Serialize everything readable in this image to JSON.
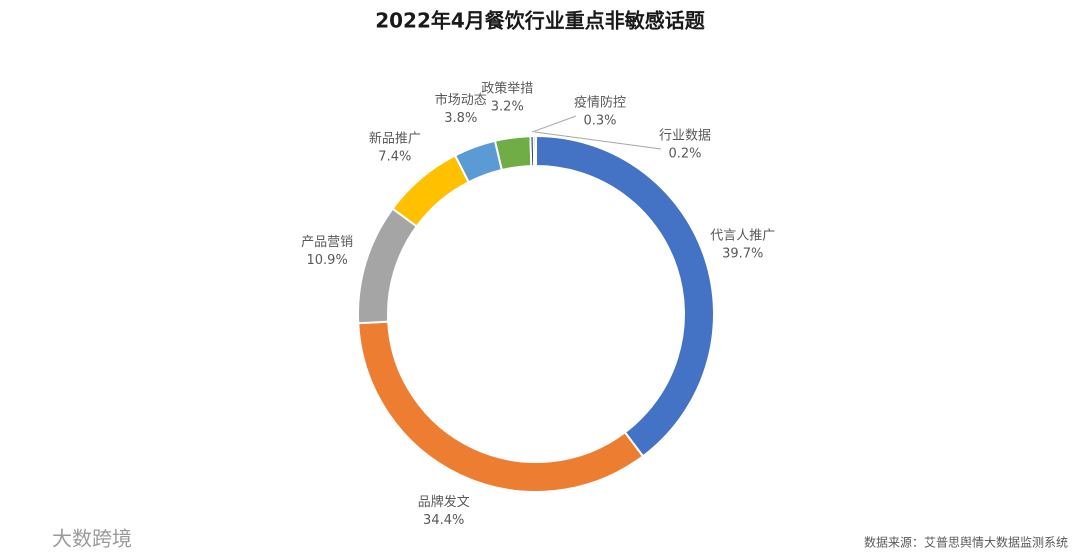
{
  "chart_data": {
    "type": "donut",
    "title": "2022年4月餐饮行业重点非敏感话题",
    "categories": [
      "代言人推广",
      "品牌发文",
      "产品营销",
      "新品推广",
      "市场动态",
      "政策举措",
      "疫情防控",
      "行业数据"
    ],
    "values": [
      39.7,
      34.4,
      10.9,
      7.4,
      3.8,
      3.2,
      0.3,
      0.2
    ],
    "value_labels": [
      "39.7%",
      "34.4%",
      "10.9%",
      "7.4%",
      "3.8%",
      "3.2%",
      "0.3%",
      "0.2%"
    ],
    "colors": [
      "#4472c4",
      "#ed7d31",
      "#a5a5a5",
      "#ffc000",
      "#5b9bd5",
      "#70ad47",
      "#264478",
      "#9e480e"
    ],
    "source": "数据来源：艾普思舆情大数据监测系统",
    "watermark": "大数跨境"
  }
}
